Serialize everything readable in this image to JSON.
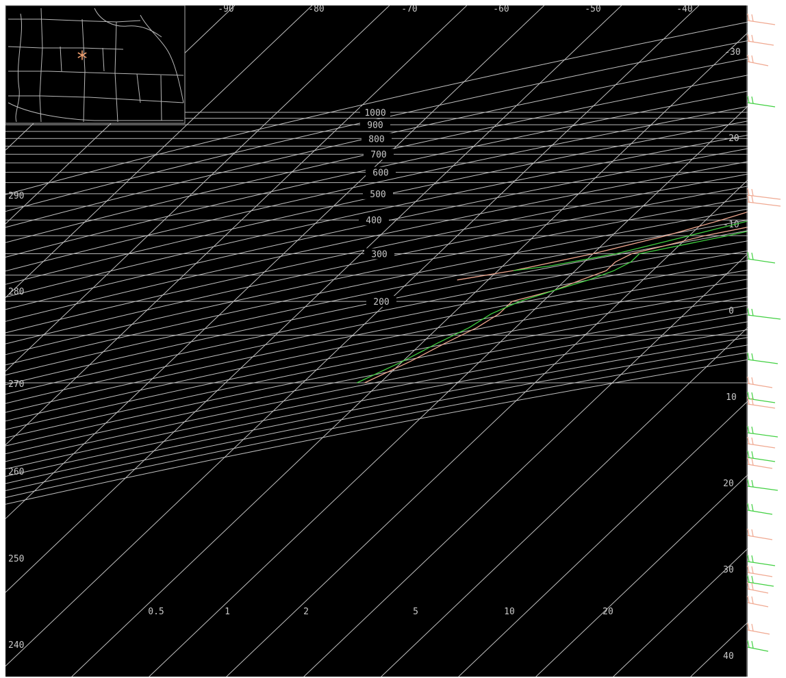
{
  "chart_data": {
    "type": "line",
    "title": "",
    "pressure_levels": [
      1000,
      900,
      800,
      700,
      600,
      500,
      400,
      300,
      200
    ],
    "pressure_lines": [
      1000,
      950,
      900,
      850,
      800,
      750,
      700,
      650,
      600,
      550,
      500,
      450,
      400,
      350,
      300,
      250,
      200,
      150,
      100
    ],
    "temperature_labels": [
      -90,
      -80,
      -70,
      -60,
      -50,
      -40,
      -30,
      -20,
      -10,
      0,
      10,
      20,
      30,
      40
    ],
    "theta_labels": [
      240,
      250,
      260,
      270,
      280,
      290
    ],
    "mixing_ratio_labels": [
      "0.5",
      "1",
      "2",
      "5",
      "10",
      "20"
    ],
    "map_inset": {
      "marker": "*",
      "marker_color": "#f0a070"
    },
    "series": [
      {
        "color": "#f0a890",
        "points": [
          [
            930,
            -2
          ],
          [
            900,
            1
          ],
          [
            870,
            3
          ],
          [
            850,
            6
          ],
          [
            800,
            4
          ],
          [
            780,
            -2
          ],
          [
            760,
            0
          ],
          [
            740,
            -1
          ],
          [
            700,
            -4
          ],
          [
            680,
            -7
          ],
          [
            640,
            -10
          ],
          [
            600,
            -13
          ],
          [
            560,
            -16
          ],
          [
            520,
            -18
          ],
          [
            500,
            -19
          ],
          [
            460,
            -23
          ],
          [
            420,
            -28
          ],
          [
            380,
            -33
          ],
          [
            350,
            -38
          ],
          [
            320,
            -42
          ],
          [
            300,
            -45
          ],
          [
            280,
            -46
          ],
          [
            260,
            -46
          ],
          [
            240,
            -48
          ],
          [
            220,
            -50
          ],
          [
            200,
            -54
          ],
          [
            180,
            -54
          ],
          [
            160,
            -55
          ],
          [
            140,
            -57
          ],
          [
            120,
            -59
          ],
          [
            100,
            -62
          ]
        ]
      },
      {
        "color": "#f0a890",
        "points": [
          [
            930,
            -2
          ],
          [
            900,
            -3
          ],
          [
            880,
            -6
          ],
          [
            850,
            -10
          ],
          [
            800,
            -12
          ],
          [
            750,
            -14
          ],
          [
            700,
            -16
          ],
          [
            650,
            -20
          ],
          [
            600,
            -24
          ],
          [
            550,
            -27
          ],
          [
            500,
            -30
          ],
          [
            450,
            -34
          ],
          [
            400,
            -38
          ],
          [
            350,
            -43
          ],
          [
            300,
            -50
          ],
          [
            260,
            -58
          ],
          [
            240,
            -64
          ]
        ]
      },
      {
        "color": "#40d040",
        "points": [
          [
            940,
            -1
          ],
          [
            900,
            2
          ],
          [
            850,
            5
          ],
          [
            800,
            6
          ],
          [
            750,
            4
          ],
          [
            700,
            1
          ],
          [
            650,
            -3
          ],
          [
            600,
            -7
          ],
          [
            550,
            -12
          ],
          [
            500,
            -16
          ],
          [
            450,
            -22
          ],
          [
            400,
            -28
          ],
          [
            350,
            -35
          ],
          [
            300,
            -44
          ],
          [
            280,
            -44
          ],
          [
            260,
            -45
          ],
          [
            240,
            -47
          ],
          [
            220,
            -50
          ],
          [
            200,
            -53
          ],
          [
            180,
            -55
          ],
          [
            160,
            -56
          ],
          [
            140,
            -58
          ],
          [
            120,
            -60
          ],
          [
            100,
            -63
          ]
        ]
      },
      {
        "color": "#40d040",
        "points": [
          [
            940,
            -5
          ],
          [
            900,
            -4
          ],
          [
            850,
            -3
          ],
          [
            800,
            -2
          ],
          [
            750,
            -5
          ],
          [
            700,
            -8
          ],
          [
            650,
            -12
          ],
          [
            600,
            -15
          ],
          [
            550,
            -19
          ],
          [
            500,
            -24
          ],
          [
            450,
            -29
          ],
          [
            400,
            -34
          ],
          [
            350,
            -40
          ],
          [
            300,
            -47
          ],
          [
            270,
            -54
          ],
          [
            260,
            -58
          ]
        ]
      }
    ]
  }
}
